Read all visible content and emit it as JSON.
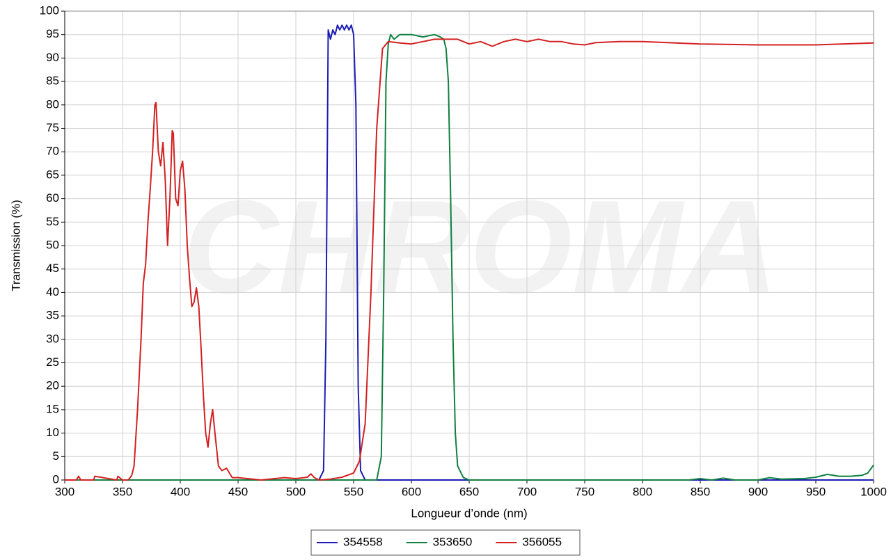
{
  "chart_data": {
    "type": "line",
    "xlabel": "Longueur d’onde (nm)",
    "ylabel": "Transmission (%)",
    "watermark": "CHROMA",
    "xlim": [
      300,
      1000
    ],
    "xticks": [
      300,
      350,
      400,
      450,
      500,
      550,
      600,
      650,
      700,
      750,
      800,
      850,
      900,
      950,
      1000
    ],
    "ylim": [
      0,
      100
    ],
    "yticks": [
      0,
      5,
      10,
      15,
      20,
      25,
      30,
      35,
      40,
      45,
      50,
      55,
      60,
      65,
      70,
      75,
      80,
      85,
      90,
      95,
      100
    ],
    "grid": true,
    "legend": "bottom",
    "series": [
      {
        "name": "354558",
        "color": "#1c1cb4",
        "x": [
          300,
          520,
          524,
          526,
          528,
          530,
          532,
          534,
          536,
          538,
          540,
          542,
          544,
          546,
          548,
          550,
          552,
          554,
          556,
          560,
          1000
        ],
        "values": [
          0,
          0,
          2,
          30,
          96,
          94,
          96,
          95,
          97,
          96,
          97,
          96,
          97,
          96,
          97,
          95,
          80,
          20,
          2,
          0,
          0
        ]
      },
      {
        "name": "353650",
        "color": "#0f8040",
        "x": [
          300,
          570,
          574,
          576,
          578,
          580,
          582,
          585,
          590,
          600,
          610,
          620,
          625,
          628,
          630,
          632,
          634,
          636,
          638,
          640,
          645,
          650,
          840,
          850,
          860,
          870,
          880,
          900,
          910,
          920,
          940,
          950,
          960,
          970,
          980,
          990,
          995,
          1000
        ],
        "values": [
          0,
          0,
          5,
          40,
          85,
          93,
          95,
          94,
          95,
          95,
          94.5,
          95,
          94.5,
          94,
          92,
          85,
          60,
          30,
          10,
          3,
          0.5,
          0,
          0,
          0.3,
          0,
          0.4,
          0,
          0,
          0.5,
          0.2,
          0.3,
          0.6,
          1.2,
          0.8,
          0.8,
          1.0,
          1.5,
          3.2
        ]
      },
      {
        "name": "356055",
        "color": "#d42020",
        "x": [
          300,
          310,
          312,
          314,
          325,
          326,
          345,
          346,
          350,
          355,
          358,
          360,
          363,
          366,
          368,
          370,
          372,
          374,
          376,
          378,
          379,
          381,
          383,
          385,
          387,
          389,
          391,
          393,
          394,
          396,
          398,
          400,
          402,
          404,
          406,
          408,
          410,
          412,
          414,
          416,
          418,
          420,
          422,
          424,
          426,
          428,
          430,
          433,
          436,
          440,
          445,
          450,
          470,
          490,
          500,
          510,
          513,
          516,
          520,
          530,
          540,
          550,
          555,
          560,
          565,
          570,
          575,
          580,
          590,
          600,
          610,
          620,
          640,
          650,
          660,
          670,
          680,
          690,
          700,
          710,
          720,
          730,
          740,
          750,
          760,
          780,
          800,
          850,
          900,
          950,
          1000
        ],
        "values": [
          0,
          0,
          0.8,
          0,
          0,
          0.8,
          0,
          0.8,
          0,
          0,
          1,
          3,
          15,
          30,
          42,
          46,
          55,
          62,
          70,
          80,
          80.5,
          70,
          67,
          72,
          64,
          50,
          60,
          74.5,
          74,
          60,
          58.5,
          66,
          68,
          62,
          50,
          43,
          37,
          38,
          41,
          37,
          28,
          18,
          10,
          7,
          12,
          15,
          10,
          3,
          2,
          2.5,
          0.5,
          0.5,
          0,
          0.5,
          0.3,
          0.6,
          1.3,
          0.5,
          0,
          0.2,
          0.6,
          1.5,
          4,
          12,
          40,
          75,
          92,
          93.5,
          93.2,
          93,
          93.5,
          94,
          94,
          93,
          93.5,
          92.5,
          93.5,
          94,
          93.5,
          94,
          93.5,
          93.5,
          93,
          92.8,
          93.3,
          93.5,
          93.5,
          93,
          92.8,
          92.8,
          93.2
        ]
      }
    ]
  }
}
